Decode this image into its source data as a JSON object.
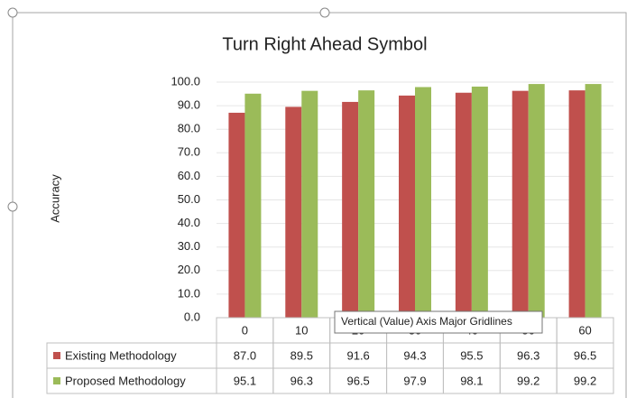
{
  "chart_data": {
    "type": "bar",
    "title": "Turn Right Ahead Symbol",
    "y_label": "Accuracy",
    "categories": [
      "0",
      "10",
      "20",
      "30",
      "40",
      "50",
      "60"
    ],
    "series": [
      {
        "name": "Existing Methodology",
        "color": "#c0504d",
        "values": [
          87.0,
          89.5,
          91.6,
          94.3,
          95.5,
          96.3,
          96.5
        ],
        "value_labels": [
          "87.0",
          "89.5",
          "91.6",
          "94.3",
          "95.5",
          "96.3",
          "96.5"
        ]
      },
      {
        "name": "Proposed Methodology",
        "color": "#9bbb59",
        "values": [
          95.1,
          96.3,
          96.5,
          97.9,
          98.1,
          99.2,
          99.2
        ],
        "value_labels": [
          "95.1",
          "96.3",
          "96.5",
          "97.9",
          "98.1",
          "99.2",
          "99.2"
        ]
      }
    ],
    "ylim": [
      0,
      100
    ],
    "yticks": [
      {
        "value": 0,
        "label": "0.0"
      },
      {
        "value": 10,
        "label": "10.0"
      },
      {
        "value": 20,
        "label": "20.0"
      },
      {
        "value": 30,
        "label": "30.0"
      },
      {
        "value": 40,
        "label": "40.0"
      },
      {
        "value": 50,
        "label": "50.0"
      },
      {
        "value": 60,
        "label": "60.0"
      },
      {
        "value": 70,
        "label": "70.0"
      },
      {
        "value": 80,
        "label": "80.0"
      },
      {
        "value": 90,
        "label": "90.0"
      },
      {
        "value": 100,
        "label": "100.0"
      }
    ],
    "grid": true,
    "tooltip": "Vertical (Value) Axis Major Gridlines"
  }
}
